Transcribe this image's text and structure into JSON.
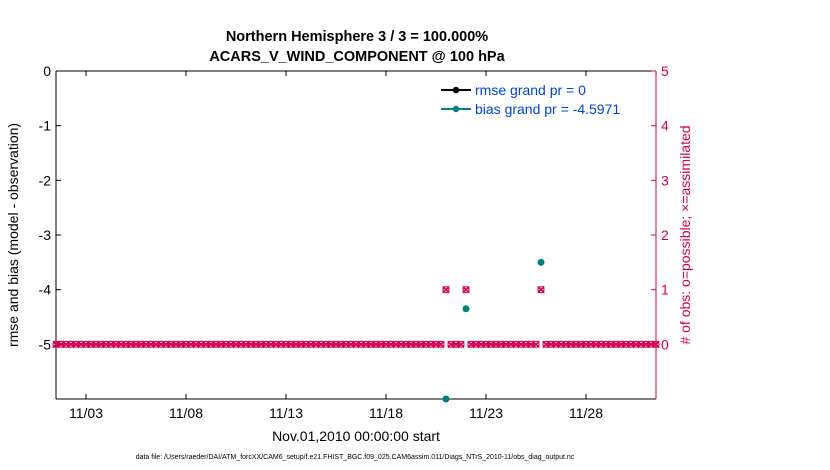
{
  "chart_data": {
    "type": "scatter",
    "title_line1": "Northern Hemisphere 3 / 3 = 100.000%",
    "title_line2": "ACARS_V_WIND_COMPONENT @ 100 hPa",
    "xlabel": "Nov.01,2010 00:00:00 start",
    "ylabel_left": "rmse and bias (model - observation)",
    "ylabel_right": "# of obs: o=possible; ×=assimilated",
    "footer": "data file: /Users/raeder/DAI/ATM_forcXX/CAM6_setup/f.e21.FHIST_BGC.f09_025.CAM6assim.011/Diags_NTrS_2010-11/obs_diag_output.nc",
    "x_range_days": [
      0.5,
      30.5
    ],
    "x_ticks": [
      {
        "day": 2,
        "label": "11/03"
      },
      {
        "day": 7,
        "label": "11/08"
      },
      {
        "day": 12,
        "label": "11/13"
      },
      {
        "day": 17,
        "label": "11/18"
      },
      {
        "day": 22,
        "label": "11/23"
      },
      {
        "day": 27,
        "label": "11/28"
      }
    ],
    "y_left_range": [
      -6,
      0
    ],
    "y_left_ticks": [
      {
        "value": 0,
        "label": "0"
      },
      {
        "value": -1,
        "label": "-1"
      },
      {
        "value": -2,
        "label": "-2"
      },
      {
        "value": -3,
        "label": "-3"
      },
      {
        "value": -4,
        "label": "-4"
      },
      {
        "value": -5,
        "label": "-5"
      }
    ],
    "y_right_range": [
      -1,
      5
    ],
    "y_right_ticks": [
      {
        "value": 0,
        "label": "0"
      },
      {
        "value": 1,
        "label": "1"
      },
      {
        "value": 2,
        "label": "2"
      },
      {
        "value": 3,
        "label": "3"
      },
      {
        "value": 4,
        "label": "4"
      },
      {
        "value": 5,
        "label": "5"
      }
    ],
    "legend": [
      {
        "label": "rmse grand pr = 0",
        "color": "#000000"
      },
      {
        "label": "bias grand pr = -4.5971",
        "color": "#008080"
      }
    ],
    "bias_series": {
      "name": "bias",
      "color": "#008080",
      "points": [
        {
          "day": 20.0,
          "value": -6.0
        },
        {
          "day": 21.0,
          "value": -4.35
        },
        {
          "day": 24.75,
          "value": -3.5
        }
      ]
    },
    "obs_count": {
      "color": "#d40052",
      "x_start": 0.0,
      "x_end": 30.5,
      "step": 0.25,
      "baseline": 0,
      "nonzero": [
        {
          "day": 20.0,
          "count": 1
        },
        {
          "day": 21.0,
          "count": 1
        },
        {
          "day": 24.75,
          "count": 1
        }
      ]
    },
    "colors": {
      "axis": "#000000",
      "right_axis": "#d40052",
      "legend_text": "#0044dd"
    }
  }
}
